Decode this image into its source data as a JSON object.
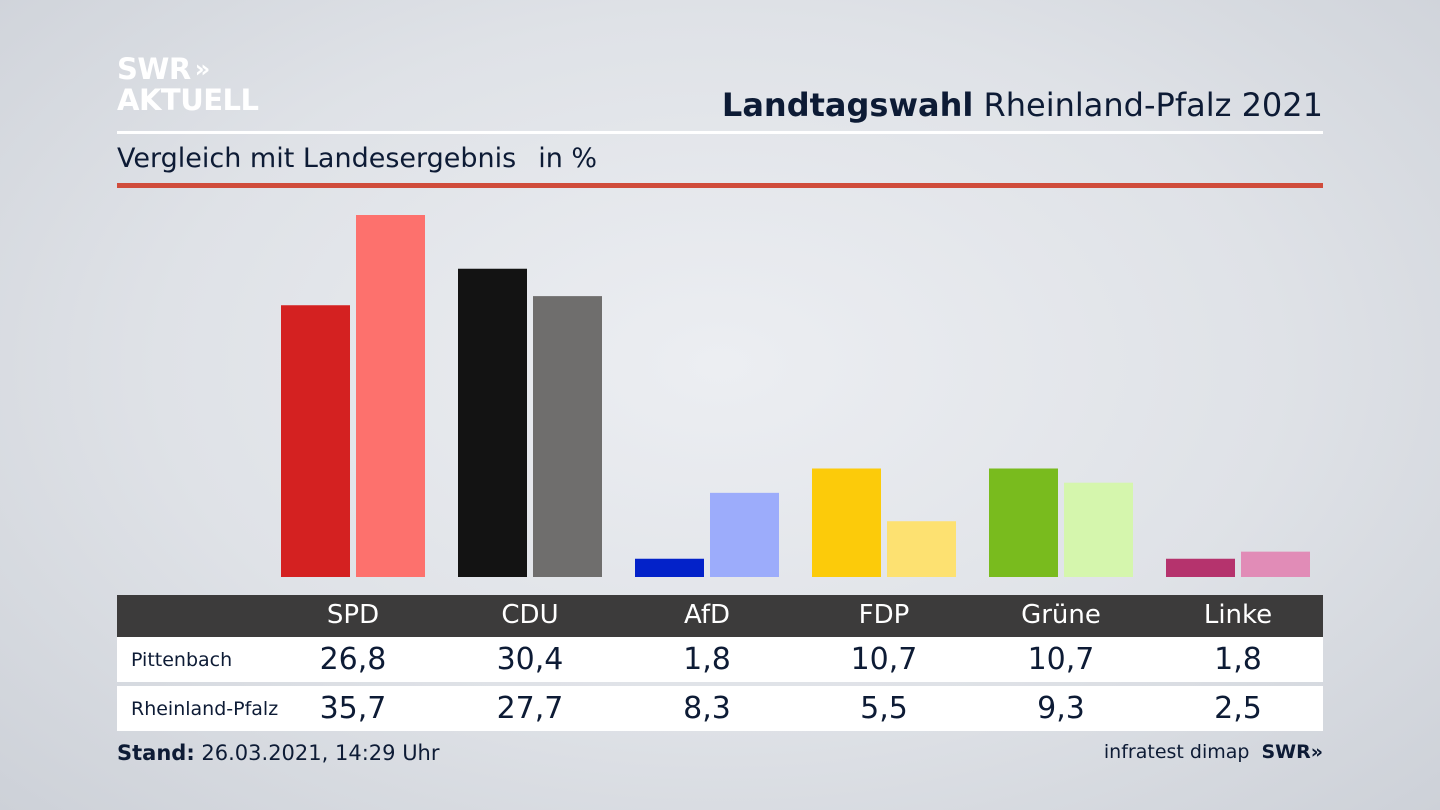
{
  "logo": {
    "line1": "SWR",
    "chevrons": "»",
    "line2": "AKTUELL"
  },
  "header": {
    "title_bold": "Landtagswahl",
    "title_rest": "Rheinland-Pfalz 2021"
  },
  "subtitle": {
    "text": "Vergleich mit Landesergebnis",
    "unit": "in %"
  },
  "colors": {
    "accent_red": "#d04c3b",
    "header_row": "#3c3b3b"
  },
  "chart_data": {
    "type": "bar",
    "categories": [
      "SPD",
      "CDU",
      "AfD",
      "FDP",
      "Grüne",
      "Linke"
    ],
    "series": [
      {
        "name": "Pittenbach",
        "values": [
          26.8,
          30.4,
          1.8,
          10.7,
          10.7,
          1.8
        ],
        "colors": [
          "#d42121",
          "#131313",
          "#0322c9",
          "#fccb0a",
          "#79bb1e",
          "#b5336d"
        ]
      },
      {
        "name": "Rheinland-Pfalz",
        "values": [
          35.7,
          27.7,
          8.3,
          5.5,
          9.3,
          2.5
        ],
        "colors": [
          "#fd716d",
          "#6f6e6d",
          "#9cacfb",
          "#fde171",
          "#d5f6ad",
          "#e18cb7"
        ]
      }
    ],
    "ylim": [
      0,
      35.7
    ],
    "grid": false
  },
  "table": {
    "rows": [
      {
        "label": "Pittenbach",
        "values": [
          "26,8",
          "30,4",
          "1,8",
          "10,7",
          "10,7",
          "1,8"
        ]
      },
      {
        "label": "Rheinland-Pfalz",
        "values": [
          "35,7",
          "27,7",
          "8,3",
          "5,5",
          "9,3",
          "2,5"
        ]
      }
    ]
  },
  "footer": {
    "stand_label": "Stand:",
    "stand_value": "26.03.2021, 14:29 Uhr",
    "source": "infratest dimap",
    "brand": "SWR»"
  }
}
